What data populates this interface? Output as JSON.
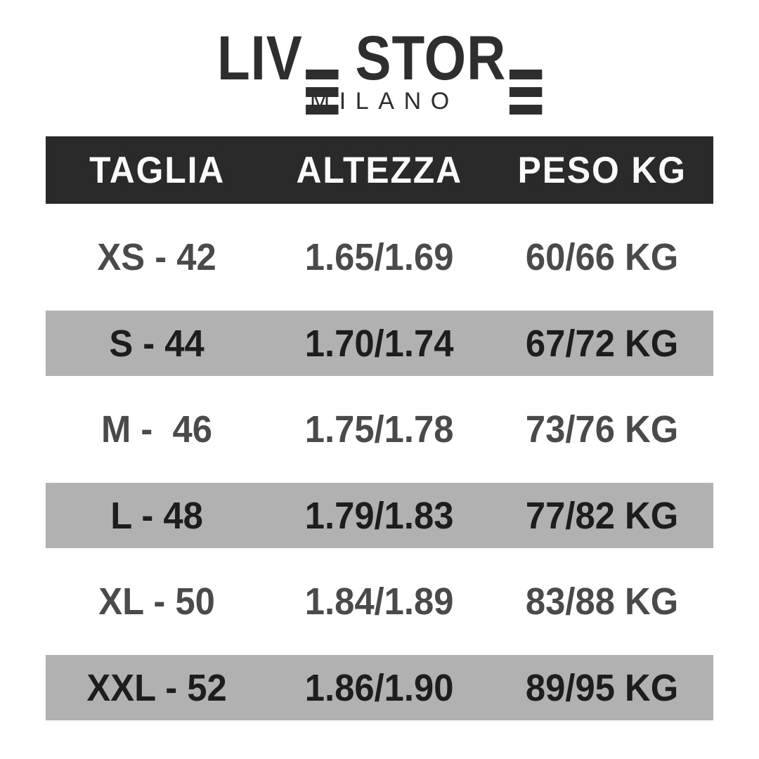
{
  "brand": {
    "logo_text": "LIVE STORE",
    "logo_left": "LIV",
    "logo_right": "STOR",
    "subtitle": "MILANO"
  },
  "table": {
    "columns": [
      "TAGLIA",
      "ALTEZZA",
      "PESO KG"
    ],
    "rows": [
      {
        "taglia": "XS - 42",
        "altezza": "1.65/1.69",
        "peso": "60/66 KG"
      },
      {
        "taglia": "S - 44",
        "altezza": "1.70/1.74",
        "peso": "67/72 KG"
      },
      {
        "taglia": "M -  46",
        "altezza": "1.75/1.78",
        "peso": "73/76 KG"
      },
      {
        "taglia": "L - 48",
        "altezza": "1.79/1.83",
        "peso": "77/82 KG"
      },
      {
        "taglia": "XL - 50",
        "altezza": "1.84/1.89",
        "peso": "83/88 KG"
      },
      {
        "taglia": "XXL - 52",
        "altezza": "1.86/1.90",
        "peso": "89/95 KG"
      }
    ]
  },
  "chart_data": {
    "type": "table",
    "title": "LIVE STORE MILANO",
    "columns": [
      "TAGLIA",
      "ALTEZZA",
      "PESO KG"
    ],
    "rows": [
      [
        "XS - 42",
        "1.65/1.69",
        "60/66 KG"
      ],
      [
        "S - 44",
        "1.70/1.74",
        "67/72 KG"
      ],
      [
        "M - 46",
        "1.75/1.78",
        "73/76 KG"
      ],
      [
        "L - 48",
        "1.79/1.83",
        "77/82 KG"
      ],
      [
        "XL - 50",
        "1.84/1.89",
        "83/88 KG"
      ],
      [
        "XXL - 52",
        "1.86/1.90",
        "89/95 KG"
      ]
    ],
    "layout": "alternating row shading: white / gray, dark header band"
  },
  "colors": {
    "page_bg": "#ffffff",
    "header_bg": "#2a2a2a",
    "header_text": "#fafafa",
    "row_shaded_bg": "#b1b1b1",
    "row_text": "#4a4a4a",
    "row_shaded_text": "#1d1d1d",
    "logo": "#2e2e2e"
  }
}
